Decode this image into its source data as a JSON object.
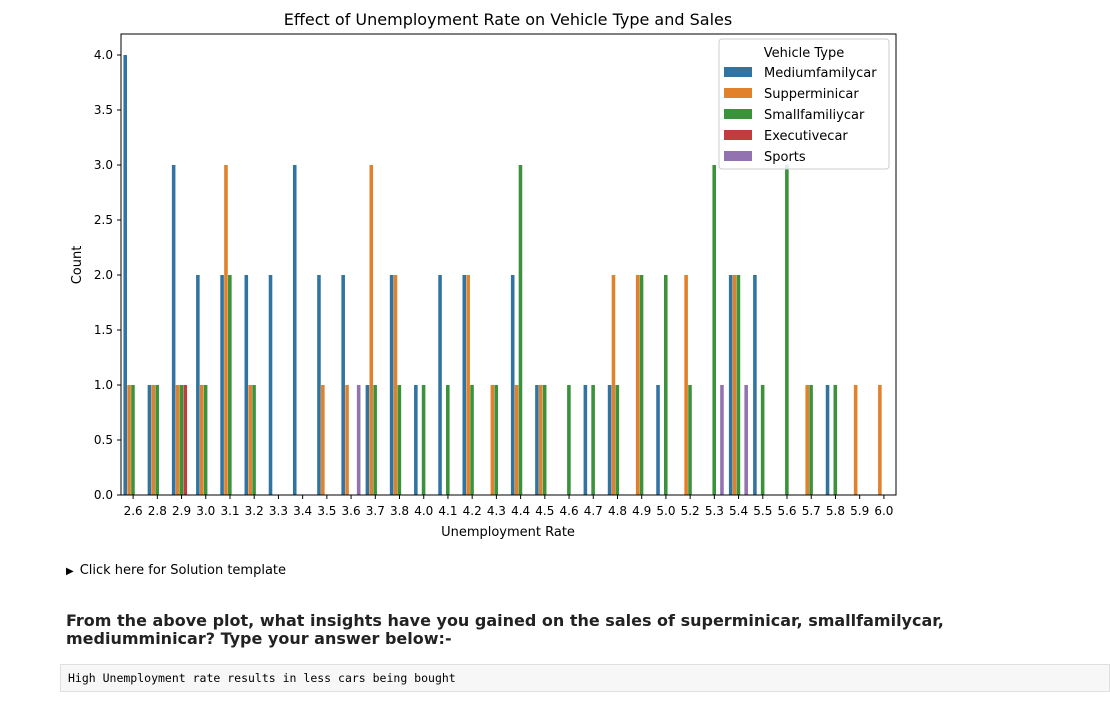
{
  "chart_data": {
    "type": "bar",
    "title": "Effect of Unemployment Rate on Vehicle Type and Sales",
    "xlabel": "Unemployment Rate",
    "ylabel": "Count",
    "ylim": [
      0,
      4.2
    ],
    "yticks": [
      "0.0",
      "0.5",
      "1.0",
      "1.5",
      "2.0",
      "2.5",
      "3.0",
      "3.5",
      "4.0"
    ],
    "legend_title": "Vehicle Type",
    "legend_position": "top-right",
    "categories": [
      "2.6",
      "2.8",
      "2.9",
      "3.0",
      "3.1",
      "3.2",
      "3.3",
      "3.4",
      "3.5",
      "3.6",
      "3.7",
      "3.8",
      "4.0",
      "4.1",
      "4.2",
      "4.3",
      "4.4",
      "4.5",
      "4.6",
      "4.7",
      "4.8",
      "4.9",
      "5.0",
      "5.2",
      "5.3",
      "5.4",
      "5.5",
      "5.6",
      "5.7",
      "5.8",
      "5.9",
      "6.0"
    ],
    "series": [
      {
        "name": "Mediumfamilycar",
        "color": "#3274a1",
        "values": [
          4,
          1,
          3,
          2,
          2,
          2,
          2,
          3,
          2,
          2,
          1,
          2,
          1,
          2,
          2,
          0,
          2,
          1,
          0,
          1,
          1,
          0,
          1,
          0,
          0,
          2,
          2,
          0,
          0,
          1,
          0,
          0
        ]
      },
      {
        "name": "Supperminicar",
        "color": "#e1812c",
        "values": [
          1,
          1,
          1,
          1,
          3,
          1,
          0,
          0,
          1,
          1,
          3,
          2,
          0,
          0,
          2,
          1,
          1,
          1,
          0,
          0,
          2,
          2,
          0,
          2,
          0,
          2,
          0,
          0,
          1,
          0,
          1,
          1
        ]
      },
      {
        "name": "Smallfamiliycar",
        "color": "#3a923a",
        "values": [
          1,
          1,
          1,
          1,
          2,
          1,
          0,
          0,
          0,
          0,
          1,
          1,
          1,
          1,
          1,
          1,
          3,
          1,
          1,
          1,
          1,
          2,
          2,
          1,
          3,
          2,
          1,
          3,
          1,
          1,
          0,
          0
        ]
      },
      {
        "name": "Executivecar",
        "color": "#c03d3e",
        "values": [
          0,
          0,
          1,
          0,
          0,
          0,
          0,
          0,
          0,
          0,
          0,
          0,
          0,
          0,
          0,
          0,
          0,
          0,
          0,
          0,
          0,
          0,
          0,
          0,
          0,
          0,
          0,
          0,
          0,
          0,
          0,
          0
        ]
      },
      {
        "name": "Sports",
        "color": "#9372b2",
        "values": [
          0,
          0,
          0,
          0,
          0,
          0,
          0,
          0,
          0,
          1,
          0,
          0,
          0,
          0,
          0,
          0,
          0,
          0,
          0,
          0,
          0,
          0,
          0,
          0,
          1,
          1,
          0,
          0,
          0,
          0,
          0,
          0
        ]
      }
    ]
  },
  "page": {
    "details_label": "Click here for Solution template",
    "question": "From the above plot, what insights have you gained on the sales of superminicar, smallfamilycar, mediumminicar? Type your answer below:-",
    "answer": "High Unemployment rate results in less cars being bought"
  }
}
